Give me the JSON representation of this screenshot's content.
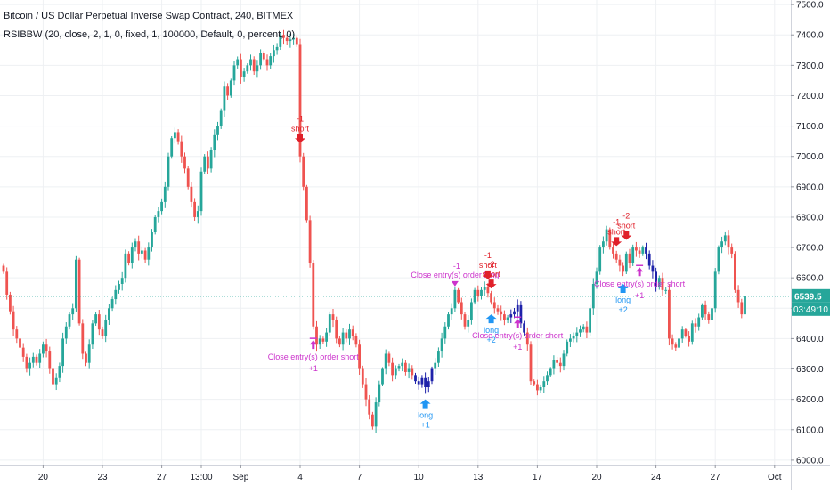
{
  "header": {
    "title": "Bitcoin / US Dollar Perpetual Inverse Swap Contract, 240, BITMEX",
    "indicator": "RSIBBW (20, close, 2, 1, 0, fixed, 1, 100000, Default, 0, percent, 0)"
  },
  "colors": {
    "up": "#26a69a",
    "down": "#ef5350",
    "strategy_bar": "#1e22aa",
    "signal_short": "#e0202a",
    "signal_long": "#2196f3",
    "signal_close": "#cc33cc",
    "price_line": "#26a69a",
    "countdown_bg": "#26a69a"
  },
  "chart_data": {
    "type": "candlestick",
    "x_ticks": [
      {
        "i": 12,
        "label": "20"
      },
      {
        "i": 30,
        "label": "23"
      },
      {
        "i": 48,
        "label": "27"
      },
      {
        "i": 60,
        "label": "13:00"
      },
      {
        "i": 72,
        "label": "Sep"
      },
      {
        "i": 90,
        "label": "4"
      },
      {
        "i": 108,
        "label": "7"
      },
      {
        "i": 126,
        "label": "10"
      },
      {
        "i": 144,
        "label": "13"
      },
      {
        "i": 162,
        "label": "17"
      },
      {
        "i": 180,
        "label": "20"
      },
      {
        "i": 198,
        "label": "24"
      },
      {
        "i": 216,
        "label": "27"
      },
      {
        "i": 234,
        "label": "Oct"
      }
    ],
    "y_ticks": [
      6000,
      6100,
      6200,
      6300,
      6400,
      6500,
      6600,
      6700,
      6800,
      6900,
      7000,
      7100,
      7200,
      7300,
      7400,
      7500
    ],
    "y_tick_labels": [
      "6000.0",
      "6100.0",
      "6200.0",
      "6300.0",
      "6400.0",
      "6500.0",
      "6600.0",
      "6700.0",
      "6800.0",
      "6900.0",
      "7000.0",
      "7100.0",
      "7200.0",
      "7300.0",
      "7400.0",
      "7500.0"
    ],
    "ylim": [
      5985,
      7515
    ],
    "last_price": {
      "value": 6539.5,
      "label": "6539.5",
      "countdown": "03:49:10"
    },
    "closes": [
      6620,
      6545,
      6490,
      6430,
      6400,
      6370,
      6340,
      6300,
      6320,
      6340,
      6320,
      6350,
      6380,
      6360,
      6300,
      6250,
      6270,
      6310,
      6400,
      6440,
      6480,
      6500,
      6660,
      6450,
      6350,
      6320,
      6380,
      6450,
      6480,
      6430,
      6410,
      6460,
      6500,
      6530,
      6560,
      6580,
      6600,
      6680,
      6650,
      6700,
      6720,
      6680,
      6690,
      6660,
      6700,
      6750,
      6800,
      6820,
      6850,
      6900,
      7000,
      7060,
      7080,
      7050,
      7000,
      6960,
      6900,
      6850,
      6800,
      6820,
      6950,
      7000,
      6960,
      7020,
      7070,
      7100,
      7150,
      7230,
      7200,
      7250,
      7300,
      7320,
      7260,
      7280,
      7300,
      7320,
      7280,
      7300,
      7340,
      7320,
      7300,
      7330,
      7350,
      7360,
      7400,
      7390,
      7380,
      7385,
      7390,
      7370,
      7000,
      6900,
      6790,
      6650,
      6440,
      6380,
      6400,
      6390,
      6420,
      6480,
      6460,
      6400,
      6380,
      6420,
      6400,
      6430,
      6410,
      6380,
      6300,
      6250,
      6200,
      6150,
      6110,
      6190,
      6250,
      6300,
      6350,
      6320,
      6280,
      6300,
      6310,
      6320,
      6290,
      6300,
      6280,
      6260,
      6250,
      6270,
      6240,
      6260,
      6300,
      6320,
      6360,
      6400,
      6440,
      6480,
      6500,
      6560,
      6520,
      6480,
      6440,
      6460,
      6520,
      6560,
      6540,
      6560,
      6570,
      6550,
      6520,
      6500,
      6490,
      6480,
      6460,
      6470,
      6480,
      6490,
      6510,
      6450,
      6420,
      6380,
      6260,
      6250,
      6230,
      6240,
      6260,
      6280,
      6300,
      6330,
      6320,
      6310,
      6350,
      6390,
      6400,
      6410,
      6420,
      6430,
      6440,
      6420,
      6500,
      6580,
      6620,
      6700,
      6720,
      6760,
      6700,
      6680,
      6660,
      6640,
      6620,
      6680,
      6650,
      6700,
      6690,
      6680,
      6700,
      6680,
      6640,
      6620,
      6570,
      6600,
      6560,
      6560,
      6400,
      6380,
      6370,
      6400,
      6430,
      6410,
      6390,
      6450,
      6440,
      6470,
      6510,
      6480,
      6460,
      6500,
      6620,
      6700,
      6720,
      6740,
      6700,
      6680,
      6560,
      6520,
      6480,
      6539.5
    ],
    "strategy_bars": [
      [
        125,
        130
      ],
      [
        154,
        158
      ],
      [
        195,
        198
      ]
    ],
    "signals": [
      {
        "i": 90,
        "kind": "short",
        "label": "short",
        "qty": "-1"
      },
      {
        "i": 94,
        "kind": "close",
        "label": "Close entry(s) order short",
        "qty": "+1"
      },
      {
        "i": 128,
        "kind": "long",
        "label": "long",
        "qty": "+1"
      },
      {
        "i": 137,
        "kind": "close",
        "label": "Close entry(s) order long",
        "qty": "-1"
      },
      {
        "i": 147,
        "kind": "short",
        "label": "short",
        "qty": "-1"
      },
      {
        "i": 148,
        "kind": "short",
        "label": "short",
        "qty": "-2"
      },
      {
        "i": 148,
        "kind": "long",
        "label": "long",
        "qty": "+2"
      },
      {
        "i": 156,
        "kind": "close",
        "label": "Close entry(s) order short",
        "qty": "+1"
      },
      {
        "i": 186,
        "kind": "short",
        "label": "short",
        "qty": "-1"
      },
      {
        "i": 189,
        "kind": "short",
        "label": "short",
        "qty": "-2"
      },
      {
        "i": 188,
        "kind": "long",
        "label": "long",
        "qty": "+2"
      },
      {
        "i": 193,
        "kind": "close",
        "label": "Close entry(s) order short",
        "qty": "+1"
      }
    ]
  }
}
